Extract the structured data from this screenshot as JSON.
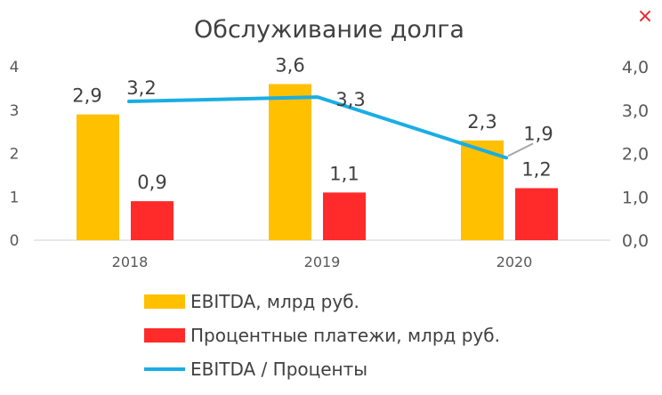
{
  "chart_data": {
    "type": "bar+line",
    "title": "Обслуживание долга",
    "categories": [
      "2018",
      "2019",
      "2020"
    ],
    "series": [
      {
        "name": "EBITDA, млрд руб.",
        "type": "bar",
        "axis": "left",
        "color": "#FFC000",
        "values": [
          2.9,
          3.6,
          2.3
        ],
        "labels": [
          "2,9",
          "3,6",
          "2,3"
        ]
      },
      {
        "name": "Процентные платежи, млрд руб.",
        "type": "bar",
        "axis": "left",
        "color": "#FF2B2B",
        "values": [
          0.9,
          1.1,
          1.2
        ],
        "labels": [
          "0,9",
          "1,1",
          "1,2"
        ]
      },
      {
        "name": "EBITDA / Проценты",
        "type": "line",
        "axis": "right",
        "color": "#1AADE4",
        "values": [
          3.2,
          3.3,
          1.9
        ],
        "labels": [
          "3,2",
          "3,3",
          "1,9"
        ]
      }
    ],
    "left_axis": {
      "ylim": [
        0,
        4
      ],
      "ticks": [
        "0",
        "1",
        "2",
        "3",
        "4"
      ]
    },
    "right_axis": {
      "ylim": [
        0,
        4
      ],
      "ticks": [
        "0,0",
        "1,0",
        "2,0",
        "3,0",
        "4,0"
      ]
    },
    "legend_position": "bottom",
    "grid": false
  },
  "window": {
    "close_glyph": "×"
  }
}
